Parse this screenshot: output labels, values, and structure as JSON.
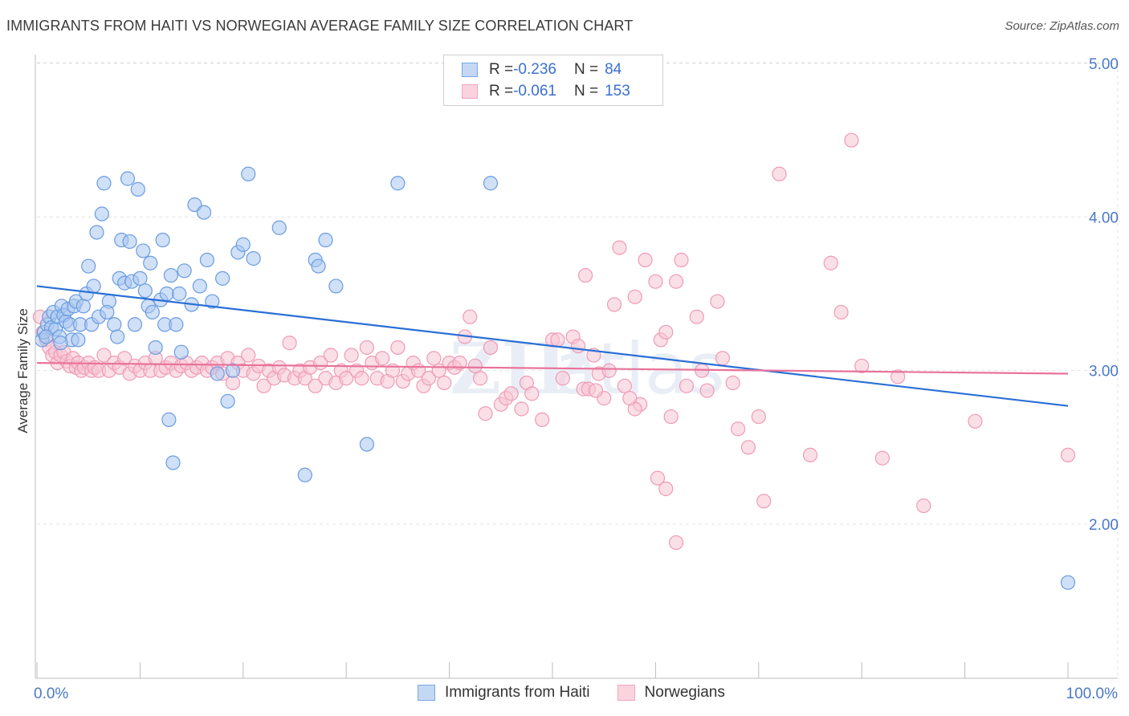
{
  "header": {
    "title": "IMMIGRANTS FROM HAITI VS NORWEGIAN AVERAGE FAMILY SIZE CORRELATION CHART",
    "source": "Source: ZipAtlas.com"
  },
  "legend_top": {
    "rows": [
      {
        "r_label": "R = ",
        "r_value": "-0.236",
        "n_label": "N = ",
        "n_value": "84",
        "color": "#7aa7e8"
      },
      {
        "r_label": "R = ",
        "r_value": "-0.061",
        "n_label": "N = ",
        "n_value": "153",
        "color": "#f4a5bf"
      }
    ]
  },
  "colors": {
    "blue_fill": "#aac6f0",
    "blue_stroke": "#6a9ce0",
    "blue_line": "#2a6fd6",
    "pink_fill": "#f8c4d4",
    "pink_stroke": "#ee9bb7",
    "pink_line": "#e8739a",
    "grid": "#e3e3e3",
    "axis_text": "#4a78c8"
  },
  "chart_data": {
    "type": "scatter",
    "title": "IMMIGRANTS FROM HAITI VS NORWEGIAN AVERAGE FAMILY SIZE CORRELATION CHART",
    "xlabel": "",
    "ylabel": "Average Family Size",
    "x_tick_labels": [
      "0.0%",
      "100.0%"
    ],
    "y_ticks": [
      2.0,
      3.0,
      4.0,
      5.0
    ],
    "y_tick_labels": [
      "2.00",
      "3.00",
      "4.00",
      "5.00"
    ],
    "xlim": [
      0,
      100
    ],
    "ylim": [
      1.0,
      5.1
    ],
    "grid": true,
    "legend": [
      "Immigrants from Haiti",
      "Norwegians"
    ],
    "series": [
      {
        "name": "Immigrants from Haiti",
        "trend": {
          "x": [
            0,
            100
          ],
          "y": [
            3.55,
            2.77
          ]
        },
        "points": [
          [
            0.5,
            3.2
          ],
          [
            0.7,
            3.25
          ],
          [
            1.0,
            3.3
          ],
          [
            1.2,
            3.35
          ],
          [
            1.4,
            3.28
          ],
          [
            1.6,
            3.38
          ],
          [
            1.8,
            3.27
          ],
          [
            2.0,
            3.35
          ],
          [
            2.2,
            3.22
          ],
          [
            2.4,
            3.42
          ],
          [
            2.6,
            3.36
          ],
          [
            2.8,
            3.32
          ],
          [
            3.0,
            3.4
          ],
          [
            3.2,
            3.3
          ],
          [
            3.4,
            3.2
          ],
          [
            3.6,
            3.42
          ],
          [
            3.8,
            3.45
          ],
          [
            4.0,
            3.2
          ],
          [
            4.2,
            3.3
          ],
          [
            4.5,
            3.42
          ],
          [
            4.8,
            3.5
          ],
          [
            5.0,
            3.68
          ],
          [
            5.3,
            3.3
          ],
          [
            5.5,
            3.55
          ],
          [
            5.8,
            3.9
          ],
          [
            6.0,
            3.35
          ],
          [
            6.3,
            4.02
          ],
          [
            6.5,
            4.22
          ],
          [
            7.0,
            3.45
          ],
          [
            7.5,
            3.3
          ],
          [
            7.8,
            3.22
          ],
          [
            8.0,
            3.6
          ],
          [
            8.2,
            3.85
          ],
          [
            8.5,
            3.57
          ],
          [
            8.8,
            4.25
          ],
          [
            9.0,
            3.84
          ],
          [
            9.2,
            3.58
          ],
          [
            9.5,
            3.3
          ],
          [
            9.8,
            4.18
          ],
          [
            10.0,
            3.6
          ],
          [
            10.3,
            3.78
          ],
          [
            10.5,
            3.52
          ],
          [
            10.8,
            3.42
          ],
          [
            11.0,
            3.7
          ],
          [
            11.2,
            3.38
          ],
          [
            11.5,
            3.15
          ],
          [
            12.0,
            3.46
          ],
          [
            12.2,
            3.85
          ],
          [
            12.4,
            3.3
          ],
          [
            12.6,
            3.5
          ],
          [
            12.8,
            2.68
          ],
          [
            13.0,
            3.62
          ],
          [
            13.2,
            2.4
          ],
          [
            13.5,
            3.3
          ],
          [
            13.8,
            3.5
          ],
          [
            14.0,
            3.12
          ],
          [
            14.3,
            3.65
          ],
          [
            15.0,
            3.43
          ],
          [
            15.3,
            4.08
          ],
          [
            15.8,
            3.55
          ],
          [
            16.2,
            4.03
          ],
          [
            16.5,
            3.72
          ],
          [
            17.0,
            3.45
          ],
          [
            17.5,
            2.98
          ],
          [
            18.0,
            3.6
          ],
          [
            18.5,
            2.8
          ],
          [
            19.0,
            3.0
          ],
          [
            19.5,
            3.77
          ],
          [
            20.0,
            3.82
          ],
          [
            20.5,
            4.28
          ],
          [
            21.0,
            3.73
          ],
          [
            23.5,
            3.93
          ],
          [
            26.0,
            2.32
          ],
          [
            27.0,
            3.72
          ],
          [
            27.3,
            3.68
          ],
          [
            28.0,
            3.85
          ],
          [
            29.0,
            3.55
          ],
          [
            32.0,
            2.52
          ],
          [
            35.0,
            4.22
          ],
          [
            44.0,
            4.22
          ],
          [
            100.0,
            1.62
          ],
          [
            0.9,
            3.22
          ],
          [
            2.3,
            3.18
          ],
          [
            6.8,
            3.38
          ]
        ]
      },
      {
        "name": "Norwegians",
        "trend": {
          "x": [
            0,
            100
          ],
          "y": [
            3.05,
            2.98
          ]
        },
        "points": [
          [
            0.3,
            3.35
          ],
          [
            0.6,
            3.25
          ],
          [
            0.9,
            3.2
          ],
          [
            1.2,
            3.15
          ],
          [
            1.5,
            3.1
          ],
          [
            1.8,
            3.12
          ],
          [
            2.0,
            3.05
          ],
          [
            2.3,
            3.1
          ],
          [
            2.6,
            3.12
          ],
          [
            2.9,
            3.06
          ],
          [
            3.2,
            3.03
          ],
          [
            3.5,
            3.08
          ],
          [
            3.8,
            3.02
          ],
          [
            4.0,
            3.05
          ],
          [
            4.3,
            3.0
          ],
          [
            4.6,
            3.02
          ],
          [
            5.0,
            3.05
          ],
          [
            5.3,
            3.0
          ],
          [
            5.6,
            3.02
          ],
          [
            6.0,
            3.0
          ],
          [
            6.5,
            3.1
          ],
          [
            7.0,
            3.0
          ],
          [
            7.5,
            3.05
          ],
          [
            8.0,
            3.02
          ],
          [
            8.5,
            3.08
          ],
          [
            9.0,
            2.98
          ],
          [
            9.5,
            3.03
          ],
          [
            10.0,
            3.0
          ],
          [
            10.5,
            3.05
          ],
          [
            11.0,
            3.0
          ],
          [
            11.5,
            3.08
          ],
          [
            12.0,
            3.0
          ],
          [
            12.5,
            3.02
          ],
          [
            13.0,
            3.05
          ],
          [
            13.5,
            3.0
          ],
          [
            14.0,
            3.03
          ],
          [
            14.5,
            3.05
          ],
          [
            15.0,
            3.0
          ],
          [
            15.5,
            3.02
          ],
          [
            16.0,
            3.05
          ],
          [
            16.5,
            3.0
          ],
          [
            17.0,
            3.02
          ],
          [
            17.5,
            3.05
          ],
          [
            18.0,
            2.98
          ],
          [
            18.5,
            3.08
          ],
          [
            19.0,
            2.92
          ],
          [
            19.5,
            3.05
          ],
          [
            20.0,
            3.0
          ],
          [
            20.5,
            3.1
          ],
          [
            21.0,
            2.98
          ],
          [
            21.5,
            3.03
          ],
          [
            22.0,
            2.9
          ],
          [
            22.5,
            3.0
          ],
          [
            23.0,
            2.95
          ],
          [
            23.5,
            3.02
          ],
          [
            24.0,
            2.97
          ],
          [
            24.5,
            3.18
          ],
          [
            25.0,
            2.95
          ],
          [
            25.5,
            3.0
          ],
          [
            26.0,
            2.95
          ],
          [
            26.5,
            3.02
          ],
          [
            27.0,
            2.9
          ],
          [
            27.5,
            3.05
          ],
          [
            28.0,
            2.95
          ],
          [
            28.5,
            3.1
          ],
          [
            29.0,
            2.92
          ],
          [
            29.5,
            3.0
          ],
          [
            30.0,
            2.95
          ],
          [
            30.5,
            3.1
          ],
          [
            31.0,
            3.0
          ],
          [
            31.5,
            2.95
          ],
          [
            32.0,
            3.15
          ],
          [
            32.5,
            3.05
          ],
          [
            33.0,
            2.95
          ],
          [
            33.5,
            3.08
          ],
          [
            34.0,
            2.93
          ],
          [
            34.5,
            3.0
          ],
          [
            35.0,
            3.15
          ],
          [
            35.5,
            2.93
          ],
          [
            36.0,
            2.98
          ],
          [
            36.5,
            3.05
          ],
          [
            37.0,
            3.0
          ],
          [
            37.5,
            2.9
          ],
          [
            38.0,
            2.95
          ],
          [
            38.5,
            3.08
          ],
          [
            39.0,
            3.0
          ],
          [
            39.5,
            2.92
          ],
          [
            40.0,
            3.05
          ],
          [
            40.5,
            3.02
          ],
          [
            41.0,
            3.05
          ],
          [
            41.5,
            3.22
          ],
          [
            42.0,
            3.35
          ],
          [
            42.5,
            3.03
          ],
          [
            43.0,
            2.95
          ],
          [
            43.5,
            2.72
          ],
          [
            44.0,
            3.15
          ],
          [
            45.0,
            2.78
          ],
          [
            45.5,
            2.82
          ],
          [
            46.0,
            2.85
          ],
          [
            47.0,
            2.75
          ],
          [
            47.5,
            2.92
          ],
          [
            48.0,
            2.85
          ],
          [
            49.0,
            2.68
          ],
          [
            50.0,
            3.2
          ],
          [
            50.5,
            3.2
          ],
          [
            51.0,
            2.95
          ],
          [
            52.0,
            3.22
          ],
          [
            52.5,
            3.16
          ],
          [
            53.0,
            2.88
          ],
          [
            53.5,
            2.88
          ],
          [
            54.0,
            3.1
          ],
          [
            54.5,
            2.98
          ],
          [
            55.0,
            2.82
          ],
          [
            56.0,
            3.43
          ],
          [
            56.5,
            3.8
          ],
          [
            57.0,
            2.9
          ],
          [
            58.0,
            3.48
          ],
          [
            58.5,
            2.78
          ],
          [
            59.0,
            3.72
          ],
          [
            60.0,
            3.58
          ],
          [
            60.5,
            3.2
          ],
          [
            61.0,
            3.25
          ],
          [
            61.5,
            2.7
          ],
          [
            62.0,
            3.58
          ],
          [
            62.5,
            3.72
          ],
          [
            63.0,
            2.9
          ],
          [
            64.0,
            3.35
          ],
          [
            64.5,
            3.0
          ],
          [
            65.0,
            2.87
          ],
          [
            66.0,
            3.45
          ],
          [
            66.5,
            3.08
          ],
          [
            67.5,
            2.92
          ],
          [
            68.0,
            2.62
          ],
          [
            69.0,
            2.5
          ],
          [
            70.0,
            2.7
          ],
          [
            70.5,
            2.15
          ],
          [
            72.0,
            4.28
          ],
          [
            75.0,
            2.45
          ],
          [
            77.0,
            3.7
          ],
          [
            78.0,
            3.38
          ],
          [
            79.0,
            4.5
          ],
          [
            80.0,
            3.03
          ],
          [
            82.0,
            2.43
          ],
          [
            83.5,
            2.96
          ],
          [
            86.0,
            2.12
          ],
          [
            91.0,
            2.67
          ],
          [
            100.0,
            2.45
          ],
          [
            61.0,
            2.23
          ],
          [
            62.0,
            1.88
          ],
          [
            58.0,
            2.75
          ],
          [
            55.5,
            3.0
          ],
          [
            57.5,
            2.82
          ],
          [
            54.2,
            2.87
          ],
          [
            53.2,
            3.62
          ],
          [
            60.2,
            2.3
          ]
        ]
      }
    ]
  },
  "bottom_legend": {
    "items": [
      {
        "label": "Immigrants from Haiti"
      },
      {
        "label": "Norwegians"
      }
    ]
  }
}
